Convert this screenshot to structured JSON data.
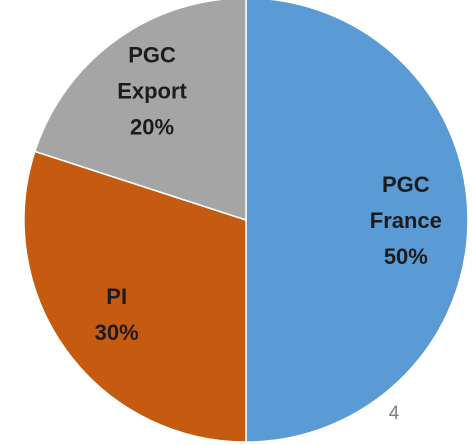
{
  "chart_data": {
    "type": "pie",
    "categories": [
      "PGC France",
      "PI",
      "PGC Export"
    ],
    "values": [
      50,
      30,
      20
    ],
    "value_labels": [
      "50%",
      "30%",
      "20%"
    ],
    "colors": [
      "#5b9bd5",
      "#c55a11",
      "#a5a5a5"
    ]
  },
  "page_number": "4"
}
